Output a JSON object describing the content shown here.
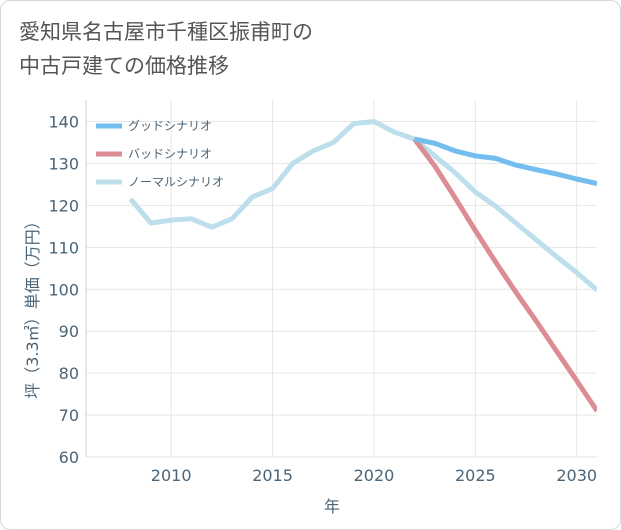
{
  "title_line1": "愛知県名古屋市千種区振甫町の",
  "title_line2": "中古戸建ての価格推移",
  "chart_data": {
    "type": "line",
    "xlabel": "年",
    "ylabel": "坪（3.3㎡）単価（万円）",
    "xlim": [
      2005.8,
      2031
    ],
    "ylim": [
      60,
      140
    ],
    "x_ticks": [
      2010,
      2015,
      2020,
      2025,
      2030
    ],
    "y_ticks": [
      60,
      70,
      80,
      90,
      100,
      110,
      120,
      130,
      140
    ],
    "grid": true,
    "legend_position": "top-left",
    "series": [
      {
        "name": "グッドシナリオ",
        "color": "#74bdef",
        "x": [
          2022,
          2023,
          2024,
          2025,
          2026,
          2027,
          2028,
          2029,
          2030,
          2031
        ],
        "y": [
          135.8,
          134.8,
          133.0,
          131.8,
          131.2,
          129.6,
          128.5,
          127.5,
          126.3,
          125.2
        ]
      },
      {
        "name": "バッドシナリオ",
        "color": "#dc8c94",
        "x": [
          2022,
          2023,
          2024,
          2025,
          2026,
          2027,
          2028,
          2029,
          2030,
          2031
        ],
        "y": [
          135.8,
          129.4,
          121.8,
          114.0,
          106.5,
          99.3,
          92.4,
          85.3,
          78.2,
          71.0
        ]
      },
      {
        "name": "ノーマルシナリオ",
        "color": "#bcdfeb",
        "x": [
          2008,
          2009,
          2010,
          2011,
          2012,
          2013,
          2014,
          2015,
          2016,
          2017,
          2018,
          2019,
          2020,
          2021,
          2022,
          2023,
          2024,
          2025,
          2026,
          2027,
          2028,
          2029,
          2030,
          2031
        ],
        "y": [
          121.5,
          115.8,
          116.5,
          116.8,
          114.8,
          116.8,
          122.0,
          124.0,
          130.0,
          133.0,
          135.0,
          139.5,
          140.0,
          137.5,
          135.8,
          131.8,
          127.8,
          123.2,
          119.8,
          115.8,
          111.8,
          107.8,
          104.0,
          99.8
        ]
      }
    ]
  }
}
